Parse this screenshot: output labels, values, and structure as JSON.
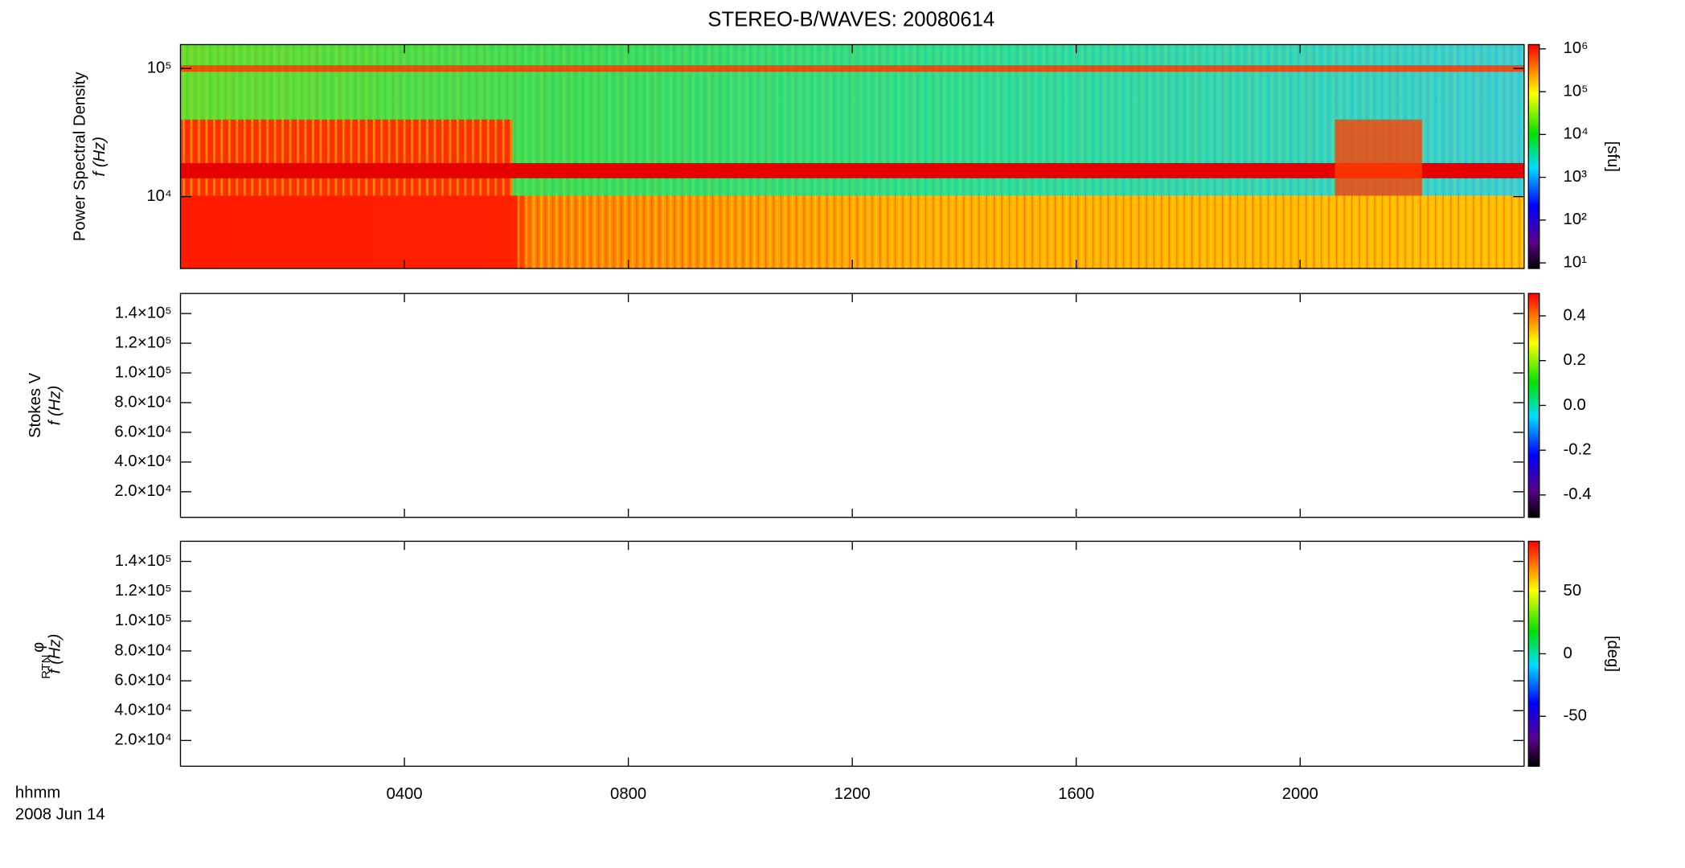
{
  "title": "STEREO-B/WAVES: 20080614",
  "time_axis": {
    "label": "hhmm",
    "date": "2008 Jun 14",
    "xlim": [
      0,
      24
    ],
    "xticks": [
      {
        "value": 4,
        "label": "0400"
      },
      {
        "value": 8,
        "label": "0800"
      },
      {
        "value": 12,
        "label": "1200"
      },
      {
        "value": 16,
        "label": "1600"
      },
      {
        "value": 20,
        "label": "2000"
      }
    ]
  },
  "chart_data": [
    {
      "type": "heatmap",
      "ylabel": "Power Spectral Density",
      "ylabel_unit": "f (Hz)",
      "ylog": true,
      "ylim": [
        2750,
        153500
      ],
      "yticks": [
        {
          "value": 10000,
          "label": "10⁴"
        },
        {
          "value": 100000,
          "label": "10⁵"
        }
      ],
      "colorbar": {
        "label": "[sfu]",
        "log": true,
        "lim": [
          7.4,
          1260000
        ],
        "ticks": [
          {
            "value": 10,
            "label": "10¹"
          },
          {
            "value": 100,
            "label": "10²"
          },
          {
            "value": 1000,
            "label": "10³"
          },
          {
            "value": 10000,
            "label": "10⁴"
          },
          {
            "value": 100000,
            "label": "10⁵"
          },
          {
            "value": 1000000,
            "label": "10⁶"
          }
        ]
      }
    },
    {
      "type": "heatmap",
      "ylabel": "Stokes V",
      "ylabel_unit": "f (Hz)",
      "ylog": false,
      "ylim": [
        2750,
        153500
      ],
      "yticks": [
        {
          "value": 20000,
          "label": "2.0×10⁴"
        },
        {
          "value": 40000,
          "label": "4.0×10⁴"
        },
        {
          "value": 60000,
          "label": "6.0×10⁴"
        },
        {
          "value": 80000,
          "label": "8.0×10⁴"
        },
        {
          "value": 100000,
          "label": "1.0×10⁵"
        },
        {
          "value": 120000,
          "label": "1.2×10⁵"
        },
        {
          "value": 140000,
          "label": "1.4×10⁵"
        }
      ],
      "colorbar": {
        "log": false,
        "lim": [
          -0.5,
          0.5
        ],
        "ticks": [
          {
            "value": -0.4,
            "label": "-0.4"
          },
          {
            "value": -0.2,
            "label": "-0.2"
          },
          {
            "value": 0,
            "label": "0.0"
          },
          {
            "value": 0.2,
            "label": "0.2"
          },
          {
            "value": 0.4,
            "label": "0.4"
          }
        ]
      }
    },
    {
      "type": "heatmap",
      "ylabel": "φ",
      "ylabel_sub": "RTN",
      "ylabel_unit": "f (Hz)",
      "ylog": false,
      "ylim": [
        2750,
        153500
      ],
      "yticks": [
        {
          "value": 20000,
          "label": "2.0×10⁴"
        },
        {
          "value": 40000,
          "label": "4.0×10⁴"
        },
        {
          "value": 60000,
          "label": "6.0×10⁴"
        },
        {
          "value": 80000,
          "label": "8.0×10⁴"
        },
        {
          "value": 100000,
          "label": "1.0×10⁵"
        },
        {
          "value": 120000,
          "label": "1.2×10⁵"
        },
        {
          "value": 140000,
          "label": "1.4×10⁵"
        }
      ],
      "colorbar": {
        "label": "[deg]",
        "log": false,
        "lim": [
          -90,
          90
        ],
        "ticks": [
          -50,
          0,
          50
        ]
      }
    }
  ]
}
